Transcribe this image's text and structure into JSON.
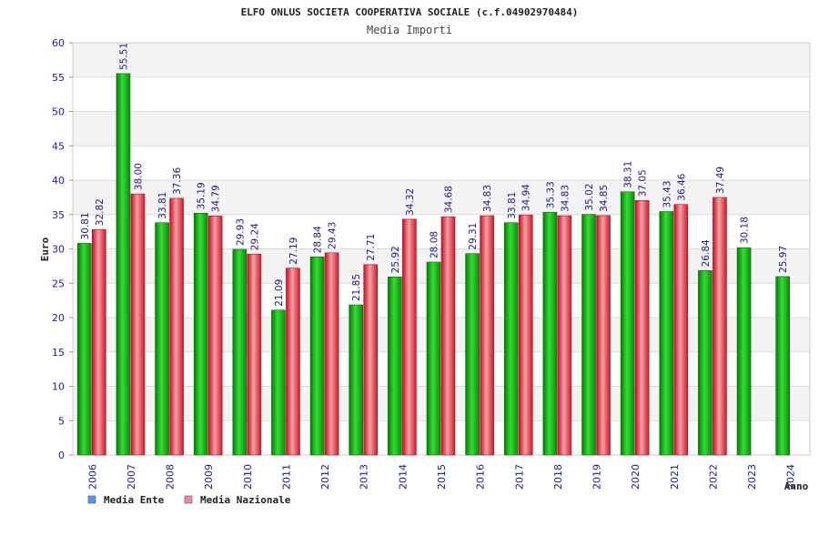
{
  "chart_data": {
    "type": "bar",
    "title": "ELFO ONLUS SOCIETA COOPERATIVA SOCIALE (c.f.04902970484)",
    "subtitle": "Media Importi",
    "xlabel": "Anno",
    "ylabel": "Euro",
    "ylim": [
      0,
      60
    ],
    "yticks": [
      0,
      5,
      10,
      15,
      20,
      25,
      30,
      35,
      40,
      45,
      50,
      55,
      60
    ],
    "grid": true,
    "legend_position": "bottom-left",
    "categories": [
      "2006",
      "2007",
      "2008",
      "2009",
      "2010",
      "2011",
      "2012",
      "2013",
      "2014",
      "2015",
      "2016",
      "2017",
      "2018",
      "2019",
      "2020",
      "2021",
      "2022",
      "2023",
      "2024"
    ],
    "series": [
      {
        "name": "Media Ente",
        "color": "#22bb22",
        "legend_color": "#5599ee",
        "values": [
          30.81,
          55.51,
          33.81,
          35.19,
          29.93,
          21.09,
          28.84,
          21.85,
          25.92,
          28.08,
          29.31,
          33.81,
          35.33,
          35.02,
          38.31,
          35.43,
          26.84,
          30.18,
          25.97
        ],
        "labels": [
          "30.81",
          "55.51",
          "33.81",
          "35.19",
          "29.93",
          "21.09",
          "28.84",
          "21.85",
          "25.92",
          "28.08",
          "29.31",
          "33.81",
          "35.33",
          "35.02",
          "38.31",
          "35.43",
          "26.84",
          "30.18",
          "25.97"
        ]
      },
      {
        "name": "Media Nazionale",
        "color": "#ee3344",
        "legend_color": "#ee88aa",
        "values": [
          32.82,
          38.0,
          37.36,
          34.79,
          29.24,
          27.19,
          29.43,
          27.71,
          34.32,
          34.68,
          34.83,
          34.94,
          34.83,
          34.85,
          37.05,
          36.46,
          37.49,
          null,
          null
        ],
        "labels": [
          "32.82",
          "38.00",
          "37.36",
          "34.79",
          "29.24",
          "27.19",
          "29.43",
          "27.71",
          "34.32",
          "34.68",
          "34.83",
          "34.94",
          "34.83",
          "34.85",
          "37.05",
          "36.46",
          "37.49",
          null,
          null
        ]
      }
    ]
  }
}
